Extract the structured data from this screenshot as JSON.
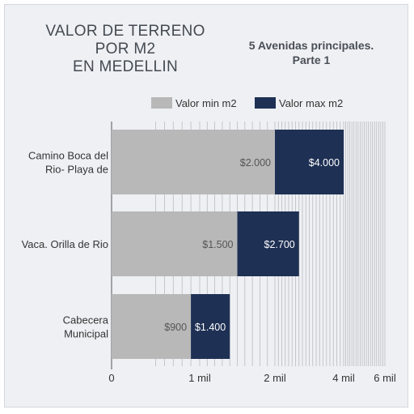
{
  "chart_data": {
    "type": "bar",
    "orientation": "horizontal",
    "stacked": true,
    "title": [
      "VALOR DE TERRENO",
      "POR M2",
      "EN MEDELLIN"
    ],
    "subtitle": [
      "5 Avenidas principales.",
      "Parte 1"
    ],
    "categories": [
      [
        "Camino Boca del",
        "Rio- Playa de"
      ],
      [
        "Vaca. Orilla de Rio"
      ],
      [
        "Cabecera",
        "Municipal"
      ]
    ],
    "series": [
      {
        "name": "Valor min m2",
        "color": "#b8b8b8",
        "values": [
          2000,
          1500,
          900
        ],
        "labels": [
          "$2.000",
          "$1.500",
          "$900"
        ]
      },
      {
        "name": "Valor max m2",
        "color": "#1e3054",
        "values": [
          4000,
          2700,
          1400
        ],
        "labels": [
          "$4.000",
          "$2.700",
          "$1.400"
        ]
      }
    ],
    "x_ticks": [
      {
        "value": 0,
        "label": "0"
      },
      {
        "value": 1000,
        "label": "1 mil"
      },
      {
        "value": 2000,
        "label": "2 mil"
      },
      {
        "value": 4000,
        "label": "4 mil"
      },
      {
        "value": 6000,
        "label": "6 mil"
      }
    ],
    "grid": true,
    "legend_position": "top-right"
  }
}
